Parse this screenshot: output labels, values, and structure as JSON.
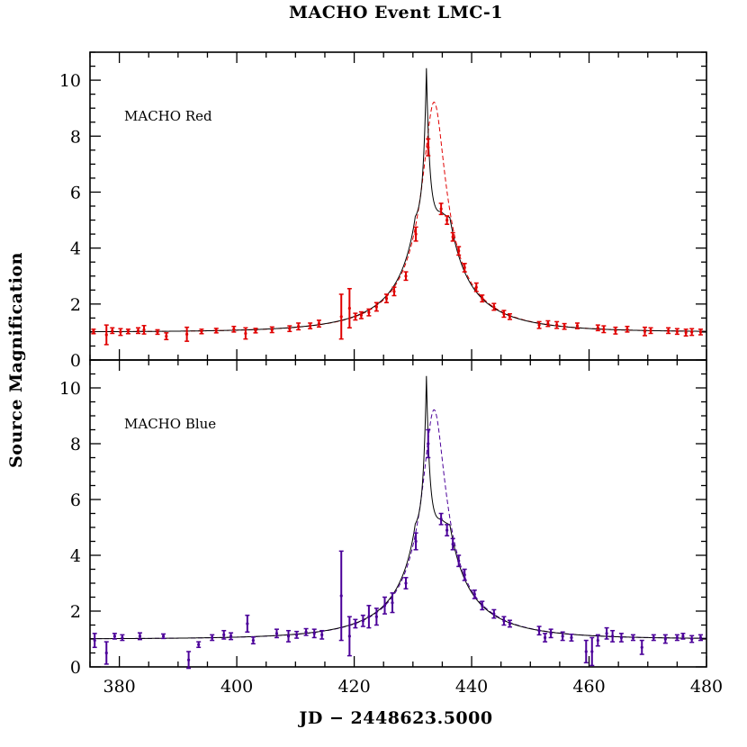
{
  "chart_data": {
    "type": "scatter",
    "title": "MACHO Event LMC-1",
    "xlabel": "JD − 2448623.5000",
    "ylabel": "Source Magnification",
    "xlim": [
      375,
      480
    ],
    "ylim": [
      0,
      11
    ],
    "xticks": [
      380,
      400,
      420,
      440,
      460,
      480
    ],
    "yticks": [
      0,
      2,
      4,
      6,
      8,
      10
    ],
    "grid": false,
    "model_binary_lens": {
      "t_peak": 432.3,
      "peak": 10.4,
      "shoulder": 4.9
    },
    "model_point_lens": {
      "t0": 433.6,
      "u0": 0.109,
      "tE": 17.3,
      "peak": 9.2
    },
    "panels": [
      {
        "name": "MACHO Red",
        "color": "#e00000",
        "points": [
          [
            375.6,
            1.02,
            0.08
          ],
          [
            377.8,
            0.9,
            0.35
          ],
          [
            378.8,
            1.05,
            0.1
          ],
          [
            380.2,
            1.0,
            0.12
          ],
          [
            381.5,
            1.02,
            0.08
          ],
          [
            383.2,
            1.05,
            0.1
          ],
          [
            384.2,
            1.08,
            0.15
          ],
          [
            386.5,
            1.0,
            0.08
          ],
          [
            388.0,
            0.85,
            0.12
          ],
          [
            391.5,
            0.92,
            0.25
          ],
          [
            394.0,
            1.02,
            0.08
          ],
          [
            396.5,
            1.05,
            0.08
          ],
          [
            399.5,
            1.1,
            0.1
          ],
          [
            401.5,
            0.95,
            0.2
          ],
          [
            403.2,
            1.05,
            0.08
          ],
          [
            406.0,
            1.08,
            0.1
          ],
          [
            409.0,
            1.12,
            0.1
          ],
          [
            410.5,
            1.2,
            0.12
          ],
          [
            412.5,
            1.22,
            0.1
          ],
          [
            414.0,
            1.3,
            0.12
          ],
          [
            417.8,
            1.55,
            0.8
          ],
          [
            419.2,
            1.85,
            0.7
          ],
          [
            420.2,
            1.55,
            0.12
          ],
          [
            421.2,
            1.6,
            0.12
          ],
          [
            422.5,
            1.7,
            0.12
          ],
          [
            423.8,
            1.9,
            0.15
          ],
          [
            425.5,
            2.2,
            0.15
          ],
          [
            426.8,
            2.45,
            0.15
          ],
          [
            428.8,
            3.0,
            0.15
          ],
          [
            430.5,
            4.5,
            0.25
          ],
          [
            432.6,
            7.6,
            0.3
          ],
          [
            434.8,
            5.4,
            0.2
          ],
          [
            435.8,
            5.0,
            0.15
          ],
          [
            436.8,
            4.4,
            0.15
          ],
          [
            437.8,
            3.9,
            0.15
          ],
          [
            438.8,
            3.3,
            0.15
          ],
          [
            440.8,
            2.6,
            0.15
          ],
          [
            441.8,
            2.2,
            0.12
          ],
          [
            443.8,
            1.9,
            0.12
          ],
          [
            445.5,
            1.65,
            0.12
          ],
          [
            446.5,
            1.55,
            0.1
          ],
          [
            451.5,
            1.25,
            0.12
          ],
          [
            453.0,
            1.3,
            0.1
          ],
          [
            454.5,
            1.25,
            0.12
          ],
          [
            455.8,
            1.2,
            0.1
          ],
          [
            458.0,
            1.22,
            0.1
          ],
          [
            461.5,
            1.15,
            0.1
          ],
          [
            462.5,
            1.1,
            0.12
          ],
          [
            464.5,
            1.05,
            0.12
          ],
          [
            466.5,
            1.1,
            0.1
          ],
          [
            469.5,
            1.02,
            0.15
          ],
          [
            470.5,
            1.05,
            0.1
          ],
          [
            473.5,
            1.05,
            0.1
          ],
          [
            475.0,
            1.02,
            0.1
          ],
          [
            476.5,
            0.98,
            0.12
          ],
          [
            477.5,
            1.0,
            0.12
          ],
          [
            479.0,
            1.0,
            0.1
          ]
        ]
      },
      {
        "name": "MACHO Blue",
        "color": "#4b0099",
        "points": [
          [
            375.8,
            0.95,
            0.25
          ],
          [
            377.8,
            0.5,
            0.4
          ],
          [
            379.2,
            1.1,
            0.1
          ],
          [
            380.5,
            1.05,
            0.1
          ],
          [
            383.5,
            1.1,
            0.12
          ],
          [
            387.5,
            1.1,
            0.08
          ],
          [
            391.8,
            0.25,
            0.3
          ],
          [
            393.5,
            0.8,
            0.1
          ],
          [
            395.8,
            1.05,
            0.1
          ],
          [
            397.8,
            1.15,
            0.15
          ],
          [
            399.0,
            1.1,
            0.12
          ],
          [
            401.8,
            1.55,
            0.3
          ],
          [
            402.8,
            0.95,
            0.12
          ],
          [
            406.8,
            1.2,
            0.15
          ],
          [
            408.8,
            1.1,
            0.2
          ],
          [
            410.2,
            1.15,
            0.12
          ],
          [
            411.8,
            1.25,
            0.12
          ],
          [
            413.2,
            1.2,
            0.15
          ],
          [
            414.5,
            1.15,
            0.15
          ],
          [
            417.8,
            2.55,
            1.6
          ],
          [
            419.2,
            1.1,
            0.7
          ],
          [
            420.2,
            1.55,
            0.15
          ],
          [
            421.5,
            1.65,
            0.2
          ],
          [
            422.5,
            1.8,
            0.4
          ],
          [
            423.8,
            1.8,
            0.3
          ],
          [
            425.2,
            2.2,
            0.3
          ],
          [
            426.5,
            2.3,
            0.35
          ],
          [
            428.8,
            3.0,
            0.2
          ],
          [
            430.5,
            4.5,
            0.3
          ],
          [
            432.6,
            8.0,
            0.5
          ],
          [
            434.8,
            5.3,
            0.2
          ],
          [
            435.8,
            4.9,
            0.2
          ],
          [
            436.8,
            4.4,
            0.2
          ],
          [
            437.8,
            3.8,
            0.2
          ],
          [
            438.8,
            3.3,
            0.2
          ],
          [
            440.5,
            2.6,
            0.15
          ],
          [
            441.8,
            2.2,
            0.15
          ],
          [
            443.8,
            1.9,
            0.15
          ],
          [
            445.5,
            1.65,
            0.15
          ],
          [
            446.5,
            1.55,
            0.12
          ],
          [
            451.5,
            1.3,
            0.15
          ],
          [
            452.5,
            1.05,
            0.15
          ],
          [
            453.5,
            1.2,
            0.15
          ],
          [
            455.5,
            1.1,
            0.15
          ],
          [
            457.0,
            1.05,
            0.12
          ],
          [
            459.5,
            0.55,
            0.4
          ],
          [
            460.5,
            0.55,
            0.5
          ],
          [
            461.5,
            0.95,
            0.2
          ],
          [
            463.0,
            1.2,
            0.2
          ],
          [
            464.0,
            1.1,
            0.2
          ],
          [
            465.5,
            1.05,
            0.15
          ],
          [
            467.5,
            1.05,
            0.1
          ],
          [
            469.0,
            0.7,
            0.25
          ],
          [
            471.0,
            1.05,
            0.1
          ],
          [
            473.0,
            1.0,
            0.15
          ],
          [
            475.0,
            1.05,
            0.1
          ],
          [
            476.0,
            1.1,
            0.1
          ],
          [
            477.5,
            1.0,
            0.12
          ],
          [
            479.0,
            1.05,
            0.1
          ]
        ]
      }
    ]
  }
}
